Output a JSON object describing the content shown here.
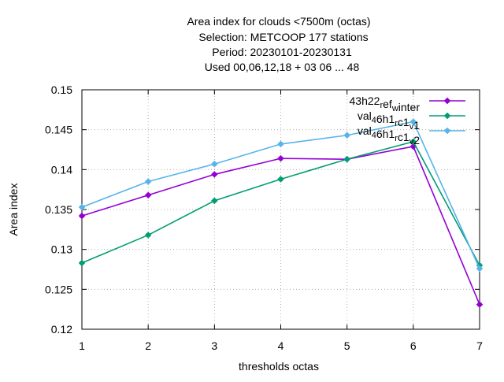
{
  "chart_data": {
    "type": "line",
    "title_lines": [
      "Area index  for clouds <7500m (octas)",
      "Selection: METCOOP    177 stations",
      "Period: 20230101-20230131",
      "Used  00,06,12,18  + 03 06 ... 48"
    ],
    "xlabel": "thresholds octas",
    "ylabel": "Area index",
    "x": [
      1,
      2,
      3,
      4,
      5,
      6,
      7
    ],
    "xlim": [
      1,
      7
    ],
    "ylim": [
      0.12,
      0.15
    ],
    "xticks": [
      "1",
      "2",
      "3",
      "4",
      "5",
      "6",
      "7"
    ],
    "yticks": [
      {
        "value": 0.12,
        "label": "0.12"
      },
      {
        "value": 0.125,
        "label": "0.125"
      },
      {
        "value": 0.13,
        "label": "0.13"
      },
      {
        "value": 0.135,
        "label": "0.135"
      },
      {
        "value": 0.14,
        "label": "0.14"
      },
      {
        "value": 0.145,
        "label": "0.145"
      },
      {
        "value": 0.15,
        "label": "0.15"
      }
    ],
    "grid": true,
    "legend_position": "top-right",
    "series": [
      {
        "name": "43h22_ref_winter",
        "legend_parts": [
          {
            "text": "43h22",
            "sub": false
          },
          {
            "text": "r",
            "sub": true
          },
          {
            "text": "ef",
            "sub": false
          },
          {
            "text": "w",
            "sub": true
          },
          {
            "text": "inter",
            "sub": false
          }
        ],
        "color": "#9400d3",
        "values": [
          0.1342,
          0.1368,
          0.1394,
          0.1414,
          0.1413,
          0.1429,
          0.1231
        ]
      },
      {
        "name": "val_46h1_rc1_v_1",
        "legend_parts": [
          {
            "text": "val",
            "sub": false
          },
          {
            "text": "4",
            "sub": true
          },
          {
            "text": "6h1",
            "sub": false
          },
          {
            "text": "r",
            "sub": true
          },
          {
            "text": "c1",
            "sub": false
          },
          {
            "text": "v",
            "sub": true
          },
          {
            "text": "1",
            "sub": false
          }
        ],
        "color": "#009e73",
        "values": [
          0.1283,
          0.1318,
          0.1361,
          0.1388,
          0.1413,
          0.1435,
          0.128
        ]
      },
      {
        "name": "val_46h1_rc1_v_2",
        "legend_parts": [
          {
            "text": "val",
            "sub": false
          },
          {
            "text": "4",
            "sub": true
          },
          {
            "text": "6h1",
            "sub": false
          },
          {
            "text": "r",
            "sub": true
          },
          {
            "text": "c1",
            "sub": false
          },
          {
            "text": "v",
            "sub": true
          },
          {
            "text": "2",
            "sub": false
          }
        ],
        "color": "#56b4e9",
        "values": [
          0.1353,
          0.1385,
          0.1407,
          0.1432,
          0.1443,
          0.146,
          0.1276
        ]
      }
    ]
  }
}
